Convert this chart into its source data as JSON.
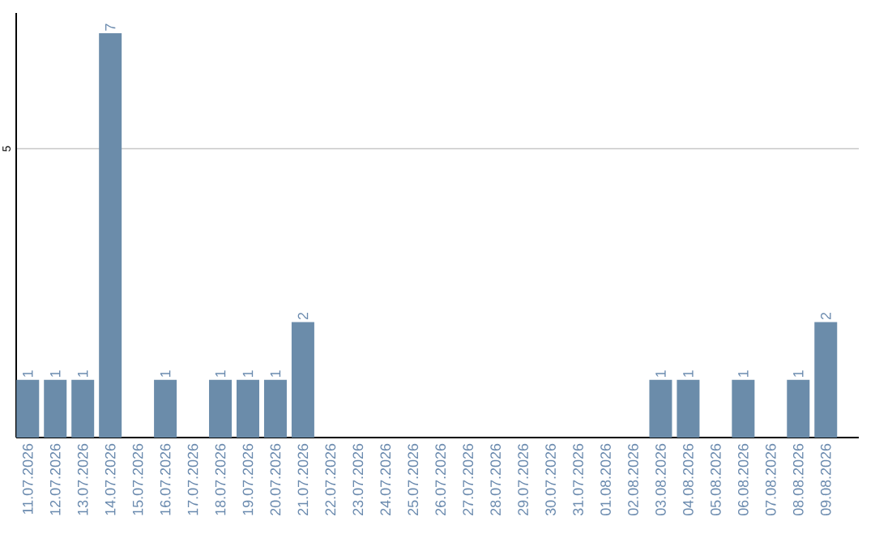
{
  "chart_data": {
    "type": "bar",
    "categories": [
      "11.07.2026",
      "12.07.2026",
      "13.07.2026",
      "14.07.2026",
      "15.07.2026",
      "16.07.2026",
      "17.07.2026",
      "18.07.2026",
      "19.07.2026",
      "20.07.2026",
      "21.07.2026",
      "22.07.2026",
      "23.07.2026",
      "24.07.2026",
      "25.07.2026",
      "26.07.2026",
      "27.07.2026",
      "28.07.2026",
      "29.07.2026",
      "30.07.2026",
      "31.07.2026",
      "01.08.2026",
      "02.08.2026",
      "03.08.2026",
      "04.08.2026",
      "05.08.2026",
      "06.08.2026",
      "07.08.2026",
      "08.08.2026",
      "09.08.2026"
    ],
    "values": [
      1,
      1,
      1,
      7,
      0,
      1,
      0,
      1,
      1,
      1,
      2,
      0,
      0,
      0,
      0,
      0,
      0,
      0,
      0,
      0,
      0,
      0,
      0,
      1,
      1,
      0,
      1,
      0,
      1,
      2
    ],
    "value_labels": [
      "1",
      "1",
      "1",
      "7",
      null,
      "1",
      null,
      "1",
      "1",
      "1",
      "2",
      null,
      null,
      null,
      null,
      null,
      null,
      null,
      null,
      null,
      null,
      null,
      null,
      "1",
      "1",
      null,
      "1",
      null,
      "1",
      "2"
    ],
    "color": "#6b8caa",
    "ylim": [
      0,
      7.35
    ],
    "yticks": [
      5
    ],
    "grid": "y"
  }
}
